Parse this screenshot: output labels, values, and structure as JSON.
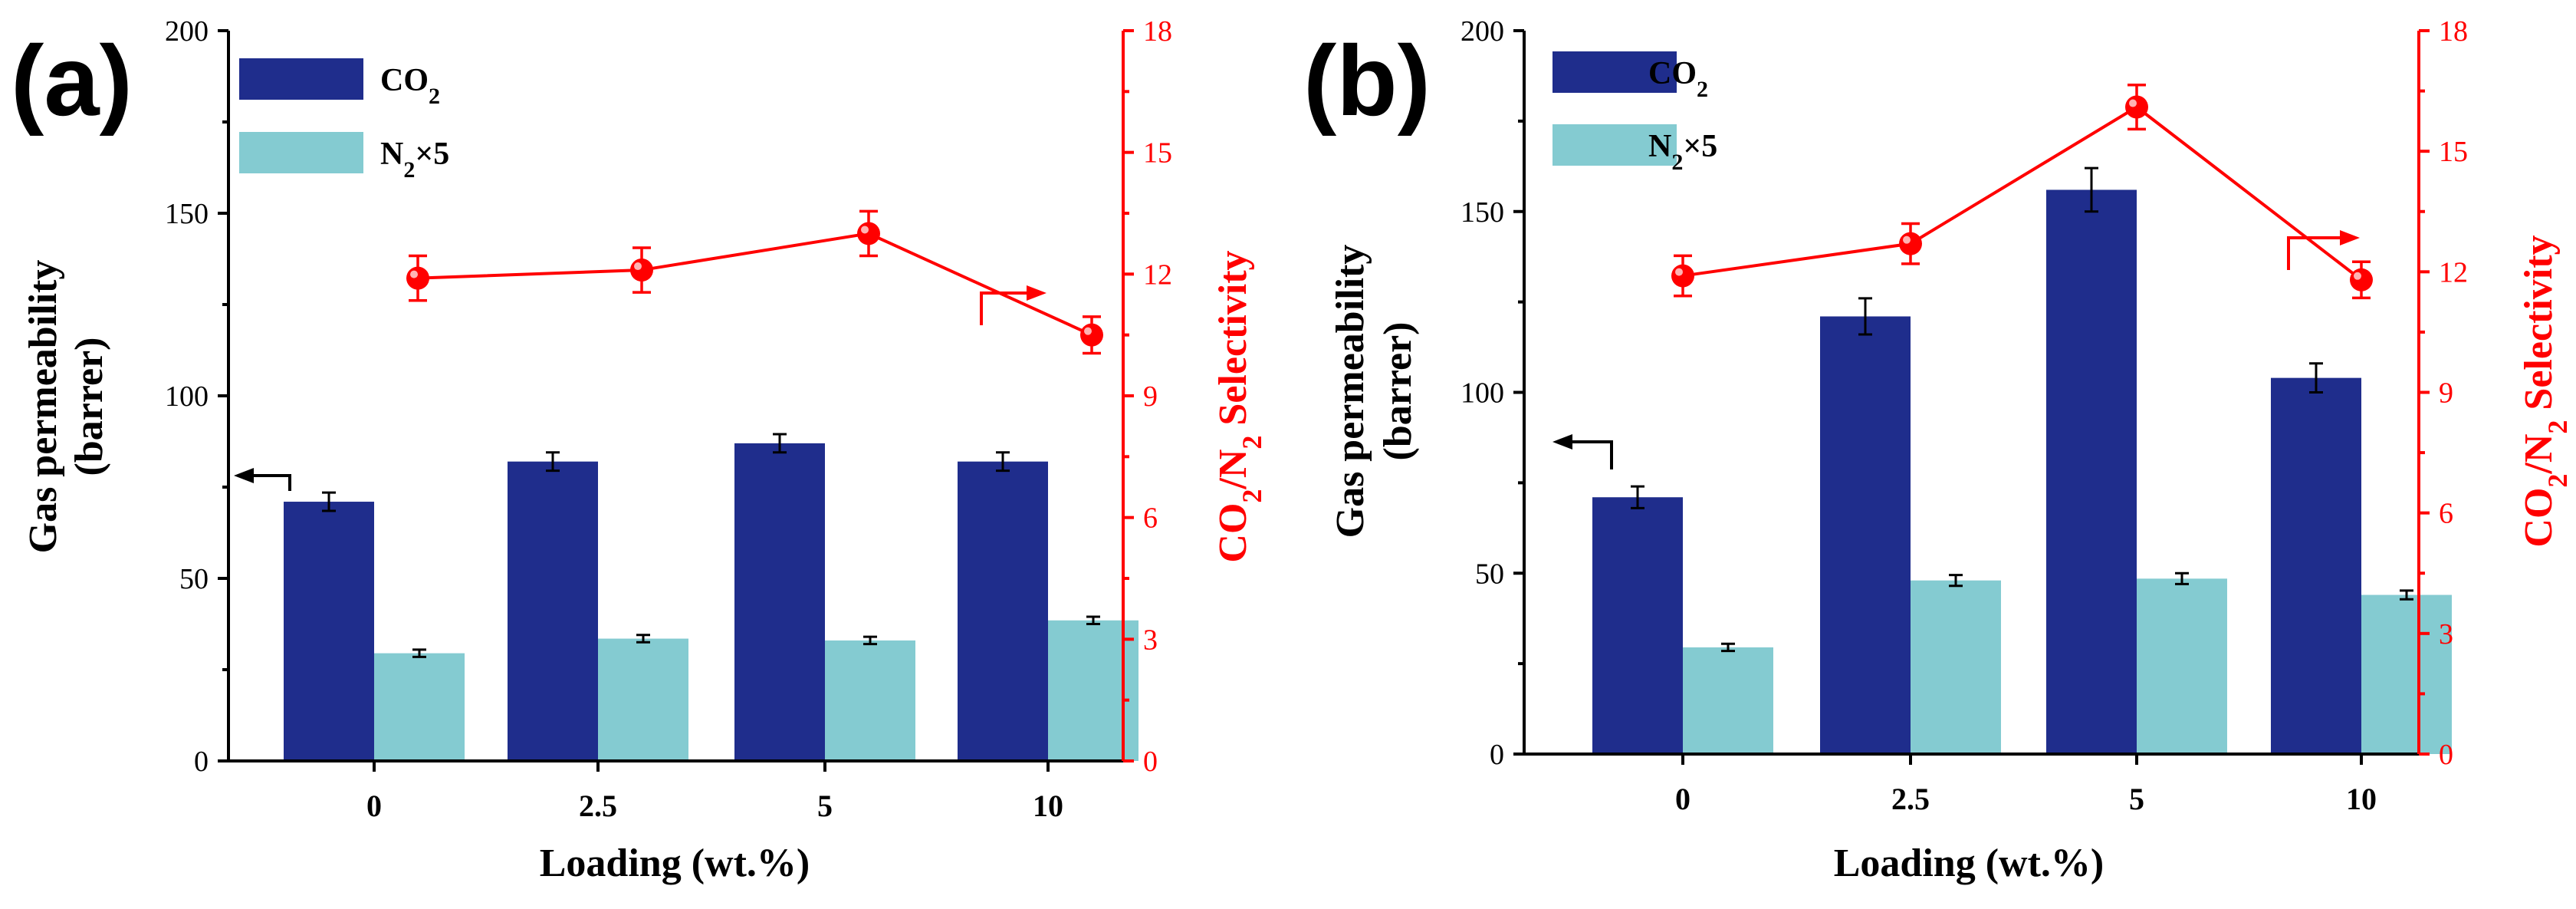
{
  "chart_data": [
    {
      "type": "bar",
      "panel_label": "(a)",
      "categories": [
        "0",
        "2.5",
        "5",
        "10"
      ],
      "series": [
        {
          "name": "CO",
          "subscript": "2",
          "suffix": "",
          "axis": "left",
          "color": "#1f2d8c",
          "values": [
            71,
            82,
            87,
            82
          ],
          "errors": [
            2.5,
            2.5,
            2.5,
            2.5
          ]
        },
        {
          "name": "N",
          "subscript": "2",
          "suffix": "×5",
          "axis": "left",
          "color": "#84cbd1",
          "values": [
            29.5,
            33.5,
            33,
            38.5
          ],
          "errors": [
            1,
            1,
            1,
            1
          ]
        },
        {
          "name": "CO2/N2 Selectivity",
          "type": "line",
          "axis": "right",
          "color": "#ff0000",
          "values": [
            11.9,
            12.1,
            13.0,
            10.5
          ],
          "errors": [
            0.55,
            0.55,
            0.55,
            0.45
          ]
        }
      ],
      "xlabel": "Loading (wt.%)",
      "ylabel_line1": "Gas permeability",
      "ylabel_line2": "(barrer)",
      "y2label": {
        "pre": "CO",
        "sub1": "2",
        "mid": "/N",
        "sub2": "2",
        "post": " Selectivity"
      },
      "ylim": [
        0,
        200
      ],
      "y_ticks": [
        "0",
        "50",
        "100",
        "150",
        "200"
      ],
      "y2lim": [
        0,
        18
      ],
      "y2_ticks": [
        "0",
        "3",
        "6",
        "9",
        "12",
        "15",
        "18"
      ],
      "legend_position": "top-left",
      "grid": false
    },
    {
      "type": "bar",
      "panel_label": "(b)",
      "categories": [
        "0",
        "2.5",
        "5",
        "10"
      ],
      "series": [
        {
          "name": "CO",
          "subscript": "2",
          "suffix": "",
          "axis": "left",
          "color": "#1f2d8c",
          "values": [
            71,
            121,
            156,
            104
          ],
          "errors": [
            3,
            5,
            6,
            4
          ]
        },
        {
          "name": "N",
          "subscript": "2",
          "suffix": "×5",
          "axis": "left",
          "color": "#84cbd1",
          "values": [
            29.5,
            48,
            48.5,
            44
          ],
          "errors": [
            1,
            1.5,
            1.5,
            1.2
          ]
        },
        {
          "name": "CO2/N2 Selectivity",
          "type": "line",
          "axis": "right",
          "color": "#ff0000",
          "values": [
            11.9,
            12.7,
            16.1,
            11.8
          ],
          "errors": [
            0.5,
            0.5,
            0.55,
            0.45
          ]
        }
      ],
      "xlabel": "Loading (wt.%)",
      "ylabel_line1": "Gas permeability",
      "ylabel_line2": "(barrer)",
      "y2label": {
        "pre": "CO",
        "sub1": "2",
        "mid": "/N",
        "sub2": "2",
        "post": " Selectivity"
      },
      "ylim": [
        0,
        200
      ],
      "y_ticks": [
        "0",
        "50",
        "100",
        "150",
        "200"
      ],
      "y2lim": [
        0,
        18
      ],
      "y2_ticks": [
        "0",
        "3",
        "6",
        "9",
        "12",
        "15",
        "18"
      ],
      "legend_position": "top-left",
      "grid": false
    }
  ]
}
